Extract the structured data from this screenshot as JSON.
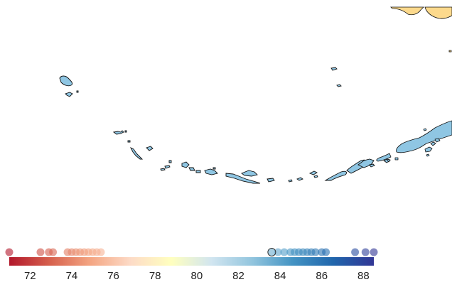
{
  "legend": {
    "ticks": [
      "72",
      "74",
      "76",
      "78",
      "80",
      "82",
      "84",
      "86",
      "88"
    ],
    "tick_values": [
      72,
      74,
      76,
      78,
      80,
      82,
      84,
      86,
      88
    ],
    "domain": [
      71,
      88.5
    ],
    "colors": [
      "#b2182b",
      "#d6604d",
      "#f4a582",
      "#fddbc7",
      "#ffffbf",
      "#d1e5f0",
      "#92c5de",
      "#4393c3",
      "#2166ac",
      "#313695"
    ],
    "highlighted_value": 83.6,
    "point_values": [
      71.0,
      72.5,
      72.9,
      73.1,
      73.8,
      74.0,
      74.2,
      74.4,
      74.6,
      74.8,
      75.0,
      75.2,
      75.4,
      83.6,
      83.9,
      84.2,
      84.5,
      84.7,
      84.9,
      85.1,
      85.3,
      85.5,
      85.7,
      86.0,
      86.2,
      87.6,
      88.1,
      88.5
    ]
  },
  "map": {
    "land_fill": "#8fc6e3",
    "mainland_fill": "#fcd98c",
    "outline": "#111111"
  }
}
